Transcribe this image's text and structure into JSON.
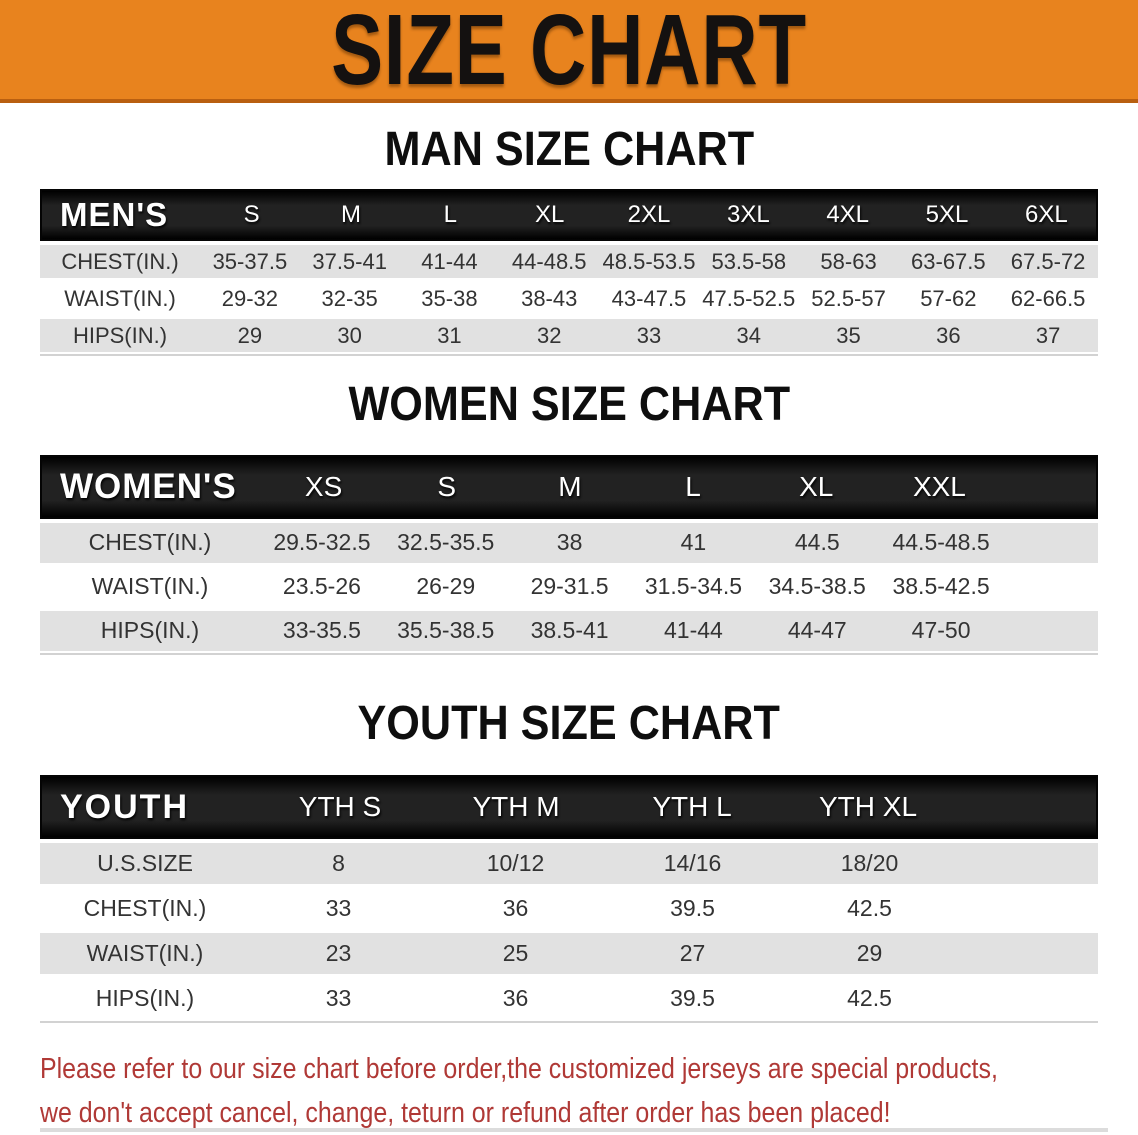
{
  "banner": {
    "title": "SIZE CHART",
    "bg_color": "#E8831E"
  },
  "sections": [
    {
      "id": "men",
      "heading": "MAN SIZE CHART",
      "group_label": "MEN'S",
      "sizes": [
        "S",
        "M",
        "L",
        "XL",
        "2XL",
        "3XL",
        "4XL",
        "5XL",
        "6XL"
      ],
      "rows": [
        {
          "label": "CHEST(IN.)",
          "values": [
            "35-37.5",
            "37.5-41",
            "41-44",
            "44-48.5",
            "48.5-53.5",
            "53.5-58",
            "58-63",
            "63-67.5",
            "67.5-72"
          ]
        },
        {
          "label": "WAIST(IN.)",
          "values": [
            "29-32",
            "32-35",
            "35-38",
            "38-43",
            "43-47.5",
            "47.5-52.5",
            "52.5-57",
            "57-62",
            "62-66.5"
          ]
        },
        {
          "label": "HIPS(IN.)",
          "values": [
            "29",
            "30",
            "31",
            "32",
            "33",
            "34",
            "35",
            "36",
            "37"
          ]
        }
      ]
    },
    {
      "id": "women",
      "heading": "WOMEN SIZE CHART",
      "group_label": "WOMEN'S",
      "sizes": [
        "XS",
        "S",
        "M",
        "L",
        "XL",
        "XXL"
      ],
      "rows": [
        {
          "label": "CHEST(IN.)",
          "values": [
            "29.5-32.5",
            "32.5-35.5",
            "38",
            "41",
            "44.5",
            "44.5-48.5"
          ]
        },
        {
          "label": "WAIST(IN.)",
          "values": [
            "23.5-26",
            "26-29",
            "29-31.5",
            "31.5-34.5",
            "34.5-38.5",
            "38.5-42.5"
          ]
        },
        {
          "label": "HIPS(IN.)",
          "values": [
            "33-35.5",
            "35.5-38.5",
            "38.5-41",
            "41-44",
            "44-47",
            "47-50"
          ]
        }
      ]
    },
    {
      "id": "youth",
      "heading": "YOUTH SIZE CHART",
      "group_label": "YOUTH",
      "sizes": [
        "YTH S",
        "YTH M",
        "YTH L",
        "YTH XL"
      ],
      "rows": [
        {
          "label": "U.S.SIZE",
          "values": [
            "8",
            "10/12",
            "14/16",
            "18/20"
          ]
        },
        {
          "label": "CHEST(IN.)",
          "values": [
            "33",
            "36",
            "39.5",
            "42.5"
          ]
        },
        {
          "label": "WAIST(IN.)",
          "values": [
            "23",
            "25",
            "27",
            "29"
          ]
        },
        {
          "label": "HIPS(IN.)",
          "values": [
            "33",
            "36",
            "39.5",
            "42.5"
          ]
        }
      ]
    }
  ],
  "footer": {
    "line1": "Please refer to our size chart before order,the customized jerseys are special products,",
    "line2": "we don't accept cancel, change, teturn or refund after order has been placed!",
    "text_color": "#B03936"
  }
}
